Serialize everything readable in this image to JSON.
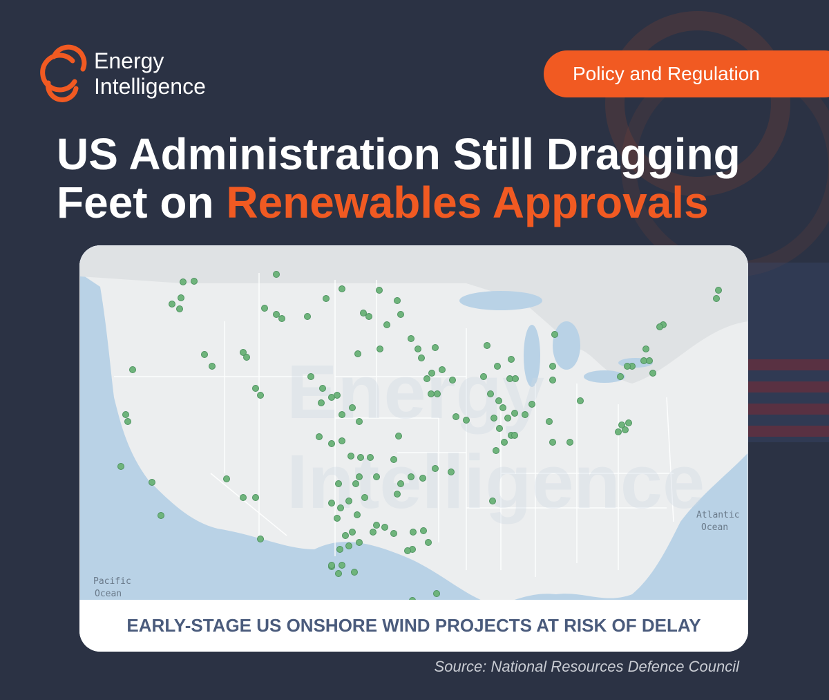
{
  "logo": {
    "line1": "Energy",
    "line2": "Intelligence"
  },
  "tag": "Policy and Regulation",
  "title": {
    "line1": "US Administration Still Dragging",
    "line2_start": "Feet on",
    "line2_highlight": "Renewables Approvals"
  },
  "map": {
    "watermark": [
      "Energy",
      "Intelligence"
    ],
    "pacific": [
      "Pacific",
      "Ocean"
    ],
    "atlantic": [
      "Atlantic",
      "Ocean"
    ]
  },
  "caption": "EARLY-STAGE US ONSHORE WIND PROJECTS AT RISK OF DELAY",
  "source": "Source: National Resources Defence Council"
}
